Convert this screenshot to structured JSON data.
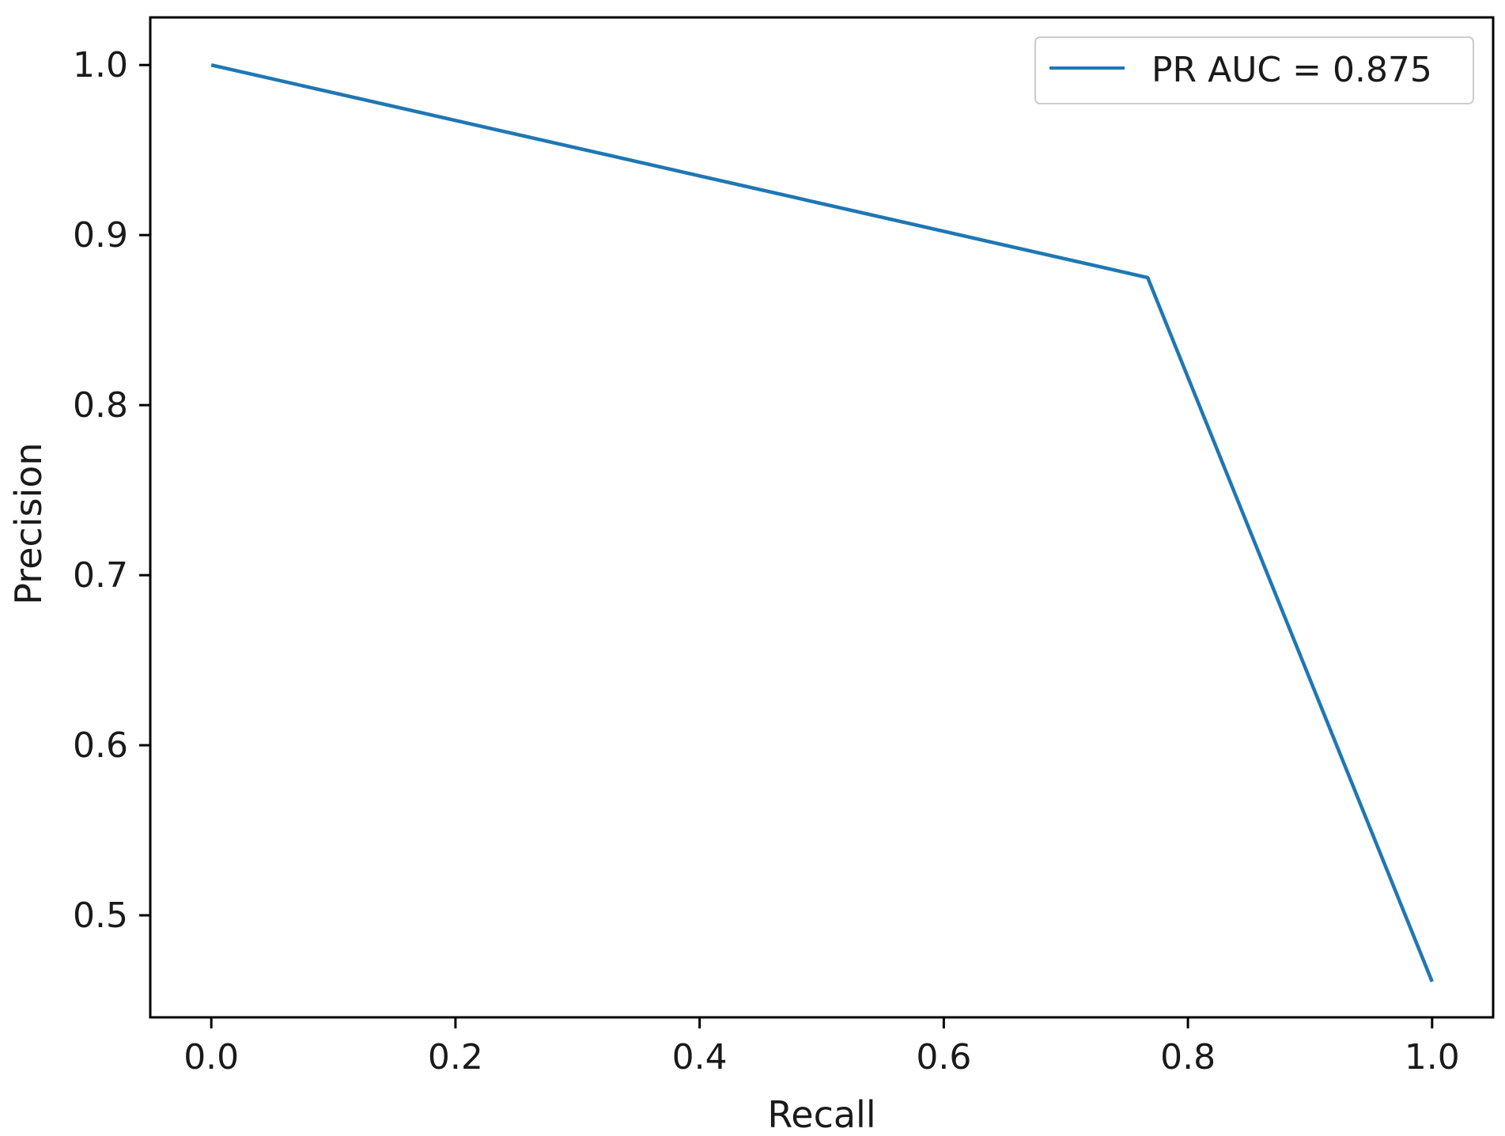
{
  "chart_data": {
    "type": "line",
    "title": "",
    "xlabel": "Recall",
    "ylabel": "Precision",
    "xlim": [
      -0.05,
      1.05
    ],
    "ylim": [
      0.44,
      1.028
    ],
    "xticks": [
      "0.0",
      "0.2",
      "0.4",
      "0.6",
      "0.8",
      "1.0"
    ],
    "yticks": [
      "0.5",
      "0.6",
      "0.7",
      "0.8",
      "0.9",
      "1.0"
    ],
    "grid": false,
    "legend_position": "top-right",
    "series": [
      {
        "name": "PR AUC = 0.875",
        "color": "#1f77b4",
        "x": [
          0.0,
          0.767,
          1.0
        ],
        "y": [
          1.0,
          0.875,
          0.461
        ]
      }
    ]
  }
}
